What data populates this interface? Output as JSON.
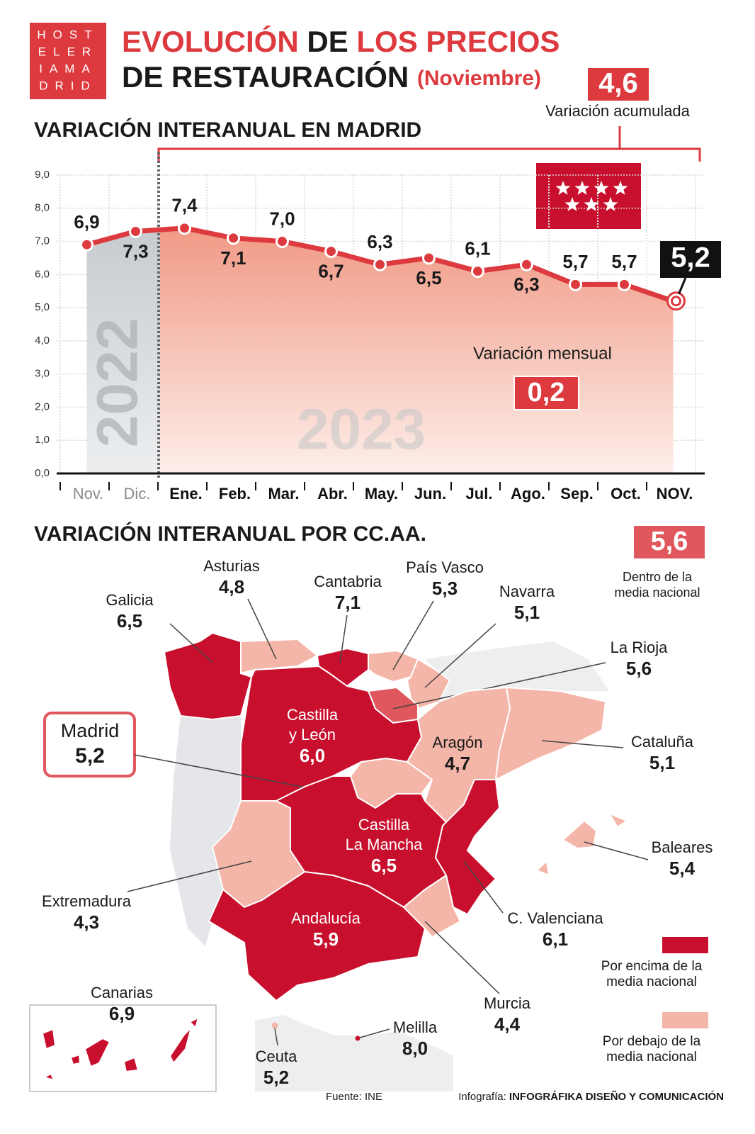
{
  "header": {
    "logo": [
      "HOST",
      "ELER",
      "IAMA",
      "DRID"
    ],
    "title_red_1": "EVOLUCIÓN",
    "title_dark_1": "DE",
    "title_red_2": "LOS PRECIOS",
    "title_line2": "DE RESTAURACIÓN",
    "title_note": "(Noviembre)"
  },
  "chart_data": {
    "type": "line",
    "title": "VARIACIÓN INTERANUAL EN MADRID",
    "categories": [
      "Nov.",
      "Dic.",
      "Ene.",
      "Feb.",
      "Mar.",
      "Abr.",
      "May.",
      "Jun.",
      "Jul.",
      "Ago.",
      "Sep.",
      "Oct.",
      "NOV."
    ],
    "values": [
      6.9,
      7.3,
      7.4,
      7.1,
      7.0,
      6.7,
      6.3,
      6.5,
      6.1,
      6.3,
      5.7,
      5.7,
      5.2
    ],
    "value_labels": [
      "6,9",
      "7,3",
      "7,4",
      "7,1",
      "7,0",
      "6,7",
      "6,3",
      "6,5",
      "6,1",
      "6,3",
      "5,7",
      "5,7",
      "5,2"
    ],
    "color": "#dd3a3f",
    "ylim": [
      0,
      9
    ],
    "yticks": [
      {
        "value": 0,
        "label": "0,0"
      },
      {
        "value": 1,
        "label": "1,0"
      },
      {
        "value": 2,
        "label": "2,0"
      },
      {
        "value": 3,
        "label": "3,0"
      },
      {
        "value": 4,
        "label": "4,0"
      },
      {
        "value": 5,
        "label": "5,0"
      },
      {
        "value": 6,
        "label": "6,0"
      },
      {
        "value": 7,
        "label": "7,0"
      },
      {
        "value": 8,
        "label": "8,0"
      },
      {
        "value": 9,
        "label": "9,0"
      }
    ],
    "grid": true,
    "year_labels": [
      "2022",
      "2023"
    ],
    "accumulated": {
      "value": 4.6,
      "label": "4,6",
      "text": "Variación acumulada"
    },
    "monthly": {
      "value": 0.2,
      "label": "0,2",
      "text": "Variación mensual"
    }
  },
  "map": {
    "title": "VARIACIÓN INTERANUAL POR CC.AA.",
    "national": {
      "value": 5.6,
      "label": "5,6",
      "text": [
        "Dentro de la",
        "media nacional"
      ]
    },
    "colors": {
      "above": "#c8102e",
      "equal": "#e0575d",
      "below": "#f4b6a8"
    },
    "legend": [
      {
        "key": "above",
        "label": [
          "Por encima de la",
          "media nacional"
        ]
      },
      {
        "key": "below",
        "label": [
          "Por debajo de la",
          "media nacional"
        ]
      }
    ],
    "regions": [
      {
        "name": "Galicia",
        "value": 6.5,
        "value_label": "6,5"
      },
      {
        "name": "Asturias",
        "value": 4.8,
        "value_label": "4,8"
      },
      {
        "name": "Cantabria",
        "value": 7.1,
        "value_label": "7,1"
      },
      {
        "name": "País Vasco",
        "value": 5.3,
        "value_label": "5,3"
      },
      {
        "name": "Navarra",
        "value": 5.1,
        "value_label": "5,1"
      },
      {
        "name": "La Rioja",
        "value": 5.6,
        "value_label": "5,6"
      },
      {
        "name": [
          "Castilla",
          "y León"
        ],
        "value": 6.0,
        "value_label": "6,0"
      },
      {
        "name": "Madrid",
        "value": 5.2,
        "value_label": "5,2"
      },
      {
        "name": "Aragón",
        "value": 4.7,
        "value_label": "4,7"
      },
      {
        "name": "Cataluña",
        "value": 5.1,
        "value_label": "5,1"
      },
      {
        "name": "Extremadura",
        "value": 4.3,
        "value_label": "4,3"
      },
      {
        "name": [
          "Castilla",
          "La Mancha"
        ],
        "value": 6.5,
        "value_label": "6,5"
      },
      {
        "name": "C. Valenciana",
        "value": 6.1,
        "value_label": "6,1"
      },
      {
        "name": "Andalucía",
        "value": 5.9,
        "value_label": "5,9"
      },
      {
        "name": "Murcia",
        "value": 4.4,
        "value_label": "4,4"
      },
      {
        "name": "Baleares",
        "value": 5.4,
        "value_label": "5,4"
      },
      {
        "name": "Canarias",
        "value": 6.9,
        "value_label": "6,9"
      },
      {
        "name": "Ceuta",
        "value": 5.2,
        "value_label": "5,2"
      },
      {
        "name": "Melilla",
        "value": 8.0,
        "value_label": "8,0"
      }
    ]
  },
  "footer": {
    "source": "Fuente: INE",
    "credit_label": "Infografía:",
    "credit": "INFOGRÁFIKA DISEÑO Y COMUNICACIÓN"
  }
}
